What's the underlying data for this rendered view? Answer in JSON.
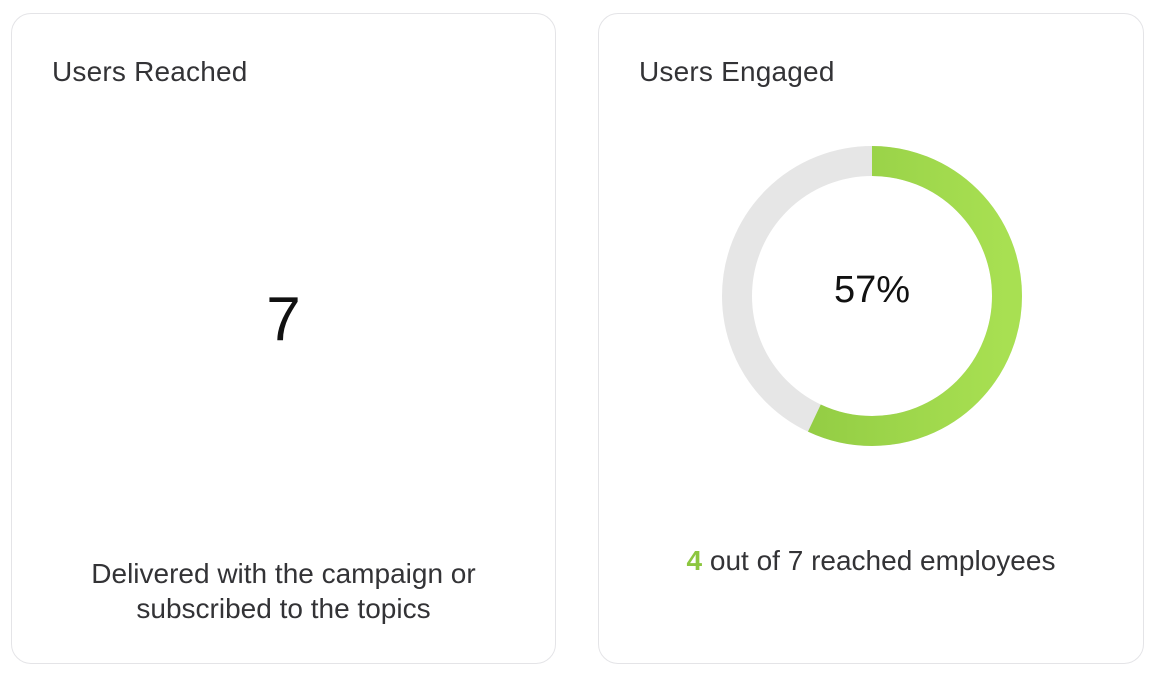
{
  "users_reached": {
    "title": "Users Reached",
    "value": "7",
    "description_line1": "Delivered with the campaign or",
    "description_line2": "subscribed to the topics"
  },
  "users_engaged": {
    "title": "Users Engaged",
    "percent_label": "57%",
    "percent_value": 0.57,
    "engaged_count": "4",
    "caption_rest": " out of 7 reached employees",
    "colors": {
      "progress_start": "#8cc63f",
      "progress_end": "#a8e052",
      "track": "#e6e6e6",
      "highlight": "#8cc63f"
    }
  }
}
